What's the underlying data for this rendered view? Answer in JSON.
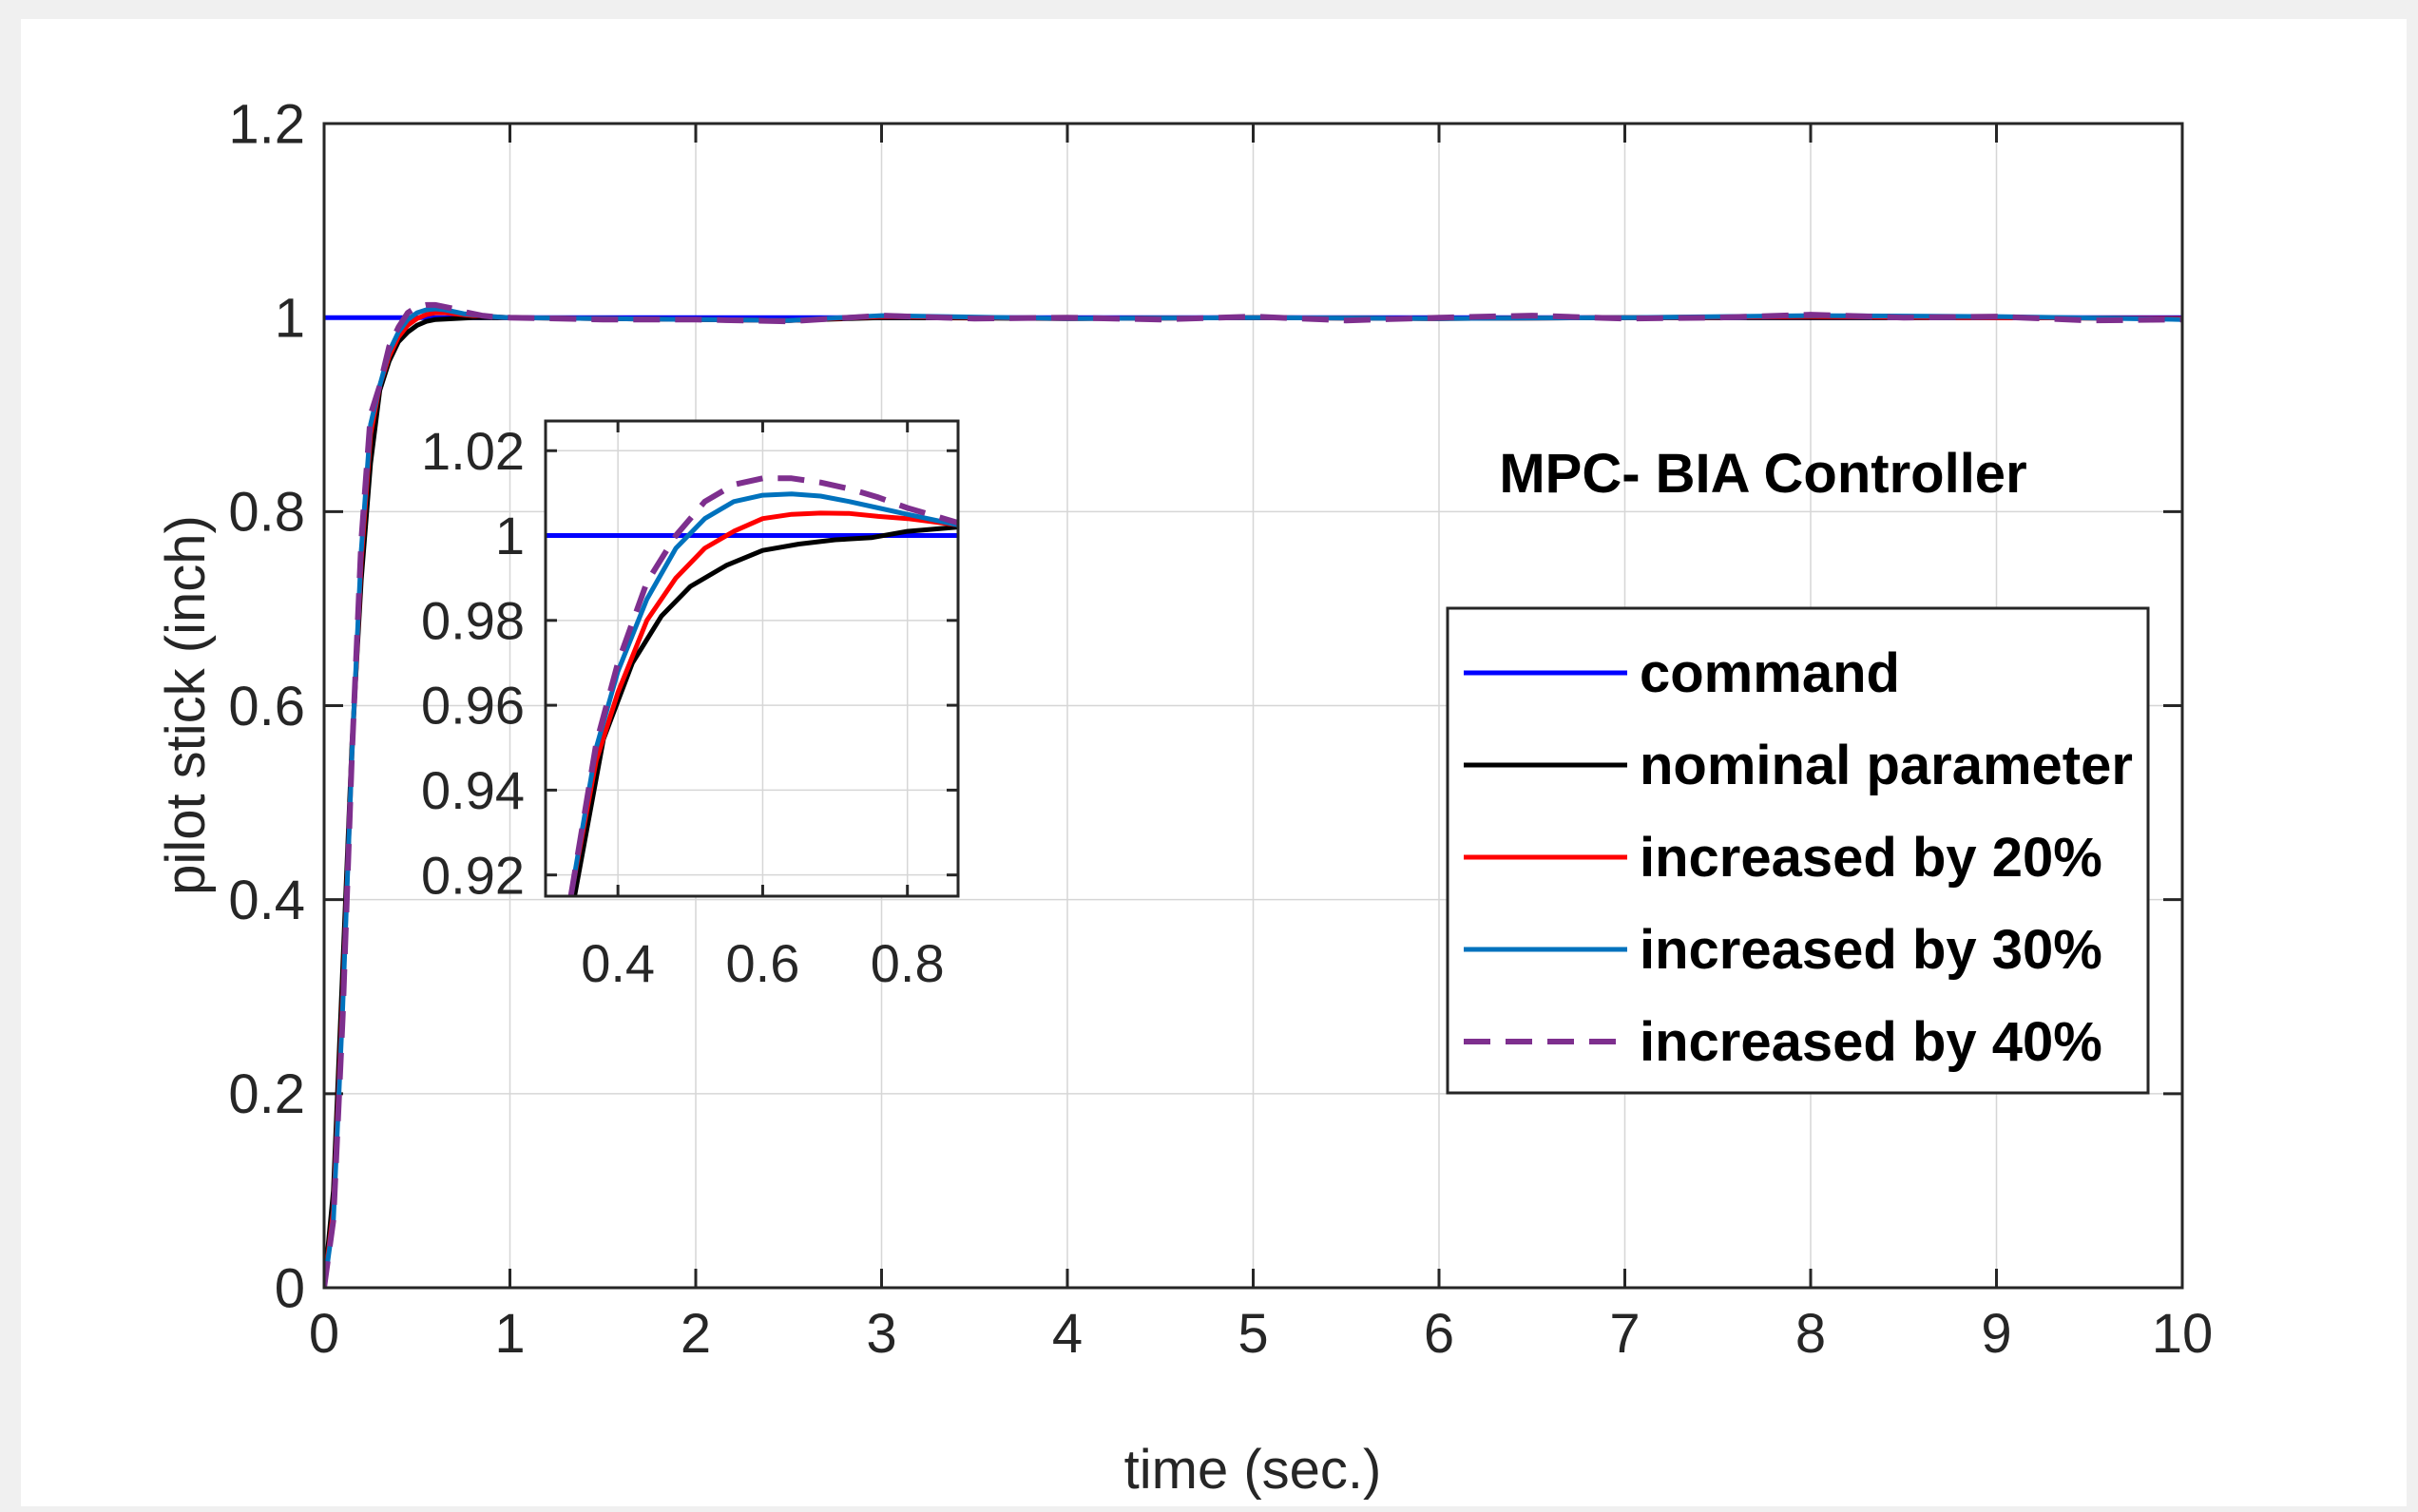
{
  "figure_title": "MPC- BIA Controller",
  "colors": {
    "command": "#0000ff",
    "nominal": "#000000",
    "inc20": "#ff0000",
    "inc30": "#0072bd",
    "inc40": "#7e2f8e",
    "figure_background": "#f0f0f0",
    "axes_background": "#ffffff"
  },
  "chart_data": [
    {
      "name": "main",
      "type": "line",
      "title": "MPC- BIA Controller",
      "xlabel": "time (sec.)",
      "ylabel": "pilot stick (inch)",
      "xlim": [
        0,
        10
      ],
      "ylim": [
        0,
        1.2
      ],
      "xticks": [
        0,
        1,
        2,
        3,
        4,
        5,
        6,
        7,
        8,
        9,
        10
      ],
      "yticks": [
        0,
        0.2,
        0.4,
        0.6,
        0.8,
        1,
        1.2
      ],
      "xtick_labels": [
        "0",
        "1",
        "2",
        "3",
        "4",
        "5",
        "6",
        "7",
        "8",
        "9",
        "10"
      ],
      "ytick_labels": [
        "0",
        "0.2",
        "0.4",
        "0.6",
        "0.8",
        "1",
        "1.2"
      ],
      "grid": true,
      "legend_position": "center-right",
      "series": [
        {
          "key": "command",
          "name": "command",
          "style": "solid",
          "x": [
            0,
            10
          ],
          "y": [
            1,
            1
          ]
        },
        {
          "key": "nominal",
          "name": "nominal parameter",
          "style": "solid",
          "x": [
            0,
            0.05,
            0.1,
            0.15,
            0.2,
            0.25,
            0.3,
            0.35,
            0.4,
            0.45,
            0.5,
            0.55,
            0.6,
            0.7,
            0.8,
            0.9,
            1.0,
            1.5,
            2.0,
            2.5,
            3.0,
            4.0,
            5.0,
            6.0,
            7.0,
            8.0,
            9.0,
            10.0
          ],
          "y": [
            0,
            0.1,
            0.33,
            0.56,
            0.73,
            0.85,
            0.925,
            0.955,
            0.975,
            0.985,
            0.992,
            0.996,
            0.998,
            0.999,
            1.0,
            1.0,
            1.0,
            0.999,
            0.998,
            0.997,
            1.0,
            0.999,
            1.0,
            0.999,
            1.0,
            1.0,
            1.0,
            0.999
          ]
        },
        {
          "key": "inc20",
          "name": "increased by 20%",
          "style": "solid",
          "x": [
            0,
            0.05,
            0.1,
            0.15,
            0.2,
            0.25,
            0.3,
            0.35,
            0.4,
            0.45,
            0.5,
            0.55,
            0.6,
            0.65,
            0.7,
            0.75,
            0.8,
            0.85,
            0.9,
            1.0,
            1.5,
            2.0,
            2.5,
            3.0,
            4.0,
            5.0,
            6.0,
            7.0,
            8.0,
            9.0,
            10.0
          ],
          "y": [
            0,
            0.08,
            0.3,
            0.55,
            0.75,
            0.88,
            0.93,
            0.96,
            0.98,
            0.992,
            0.999,
            1.003,
            1.005,
            1.005,
            1.004,
            1.003,
            1.002,
            1.002,
            1.001,
            1.0,
            0.999,
            0.998,
            0.997,
            1.001,
            0.999,
            1.0,
            0.999,
            1.0,
            1.001,
            1.0,
            0.999
          ]
        },
        {
          "key": "inc30",
          "name": "increased by 30%",
          "style": "solid",
          "x": [
            0,
            0.05,
            0.1,
            0.15,
            0.2,
            0.25,
            0.3,
            0.35,
            0.4,
            0.45,
            0.5,
            0.55,
            0.6,
            0.65,
            0.7,
            0.75,
            0.8,
            0.85,
            0.9,
            1.0,
            1.5,
            2.0,
            2.5,
            3.0,
            4.0,
            5.0,
            6.0,
            7.0,
            8.0,
            9.0,
            10.0
          ],
          "y": [
            0,
            0.07,
            0.29,
            0.55,
            0.76,
            0.89,
            0.93,
            0.965,
            0.985,
            0.998,
            1.005,
            1.008,
            1.009,
            1.008,
            1.006,
            1.004,
            1.003,
            1.002,
            1.001,
            1.0,
            0.999,
            0.998,
            0.997,
            1.002,
            0.999,
            1.0,
            0.999,
            1.0,
            1.002,
            1.001,
            0.998
          ]
        },
        {
          "key": "inc40",
          "name": "increased by 40%",
          "style": "dashed",
          "x": [
            0,
            0.05,
            0.1,
            0.15,
            0.2,
            0.25,
            0.3,
            0.35,
            0.4,
            0.45,
            0.5,
            0.55,
            0.6,
            0.65,
            0.7,
            0.75,
            0.8,
            0.85,
            0.9,
            1.0,
            1.5,
            2.0,
            2.5,
            3.0,
            3.5,
            4.0,
            4.5,
            5.0,
            5.5,
            6.0,
            6.5,
            7.0,
            7.5,
            8.0,
            8.5,
            9.0,
            9.5,
            10.0
          ],
          "y": [
            0,
            0.07,
            0.28,
            0.55,
            0.77,
            0.9,
            0.93,
            0.97,
            0.99,
            1.005,
            1.011,
            1.013,
            1.013,
            1.011,
            1.009,
            1.006,
            1.004,
            1.002,
            1.001,
            1.0,
            0.998,
            0.998,
            0.996,
            1.002,
            0.999,
            1.0,
            0.998,
            1.001,
            0.997,
            1.0,
            1.002,
            0.999,
            1.0,
            1.003,
            1.0,
            1.001,
            0.997,
            0.998
          ]
        }
      ]
    },
    {
      "name": "inset",
      "type": "line",
      "title": "",
      "xlabel": "",
      "ylabel": "",
      "xlim": [
        0.3,
        0.87
      ],
      "ylim": [
        0.915,
        1.027
      ],
      "xticks": [
        0.4,
        0.6,
        0.8
      ],
      "yticks": [
        0.92,
        0.94,
        0.96,
        0.98,
        1,
        1.02
      ],
      "xtick_labels": [
        "0.4",
        "0.6",
        "0.8"
      ],
      "ytick_labels": [
        "0.92",
        "0.94",
        "0.96",
        "0.98",
        "1",
        "1.02"
      ],
      "grid": true,
      "series": [
        {
          "key": "command",
          "name": "command",
          "style": "solid",
          "x": [
            0.3,
            0.87
          ],
          "y": [
            1,
            1
          ]
        },
        {
          "key": "nominal",
          "name": "nominal parameter",
          "style": "solid",
          "x": [
            0.34,
            0.38,
            0.42,
            0.46,
            0.5,
            0.55,
            0.6,
            0.65,
            0.7,
            0.75,
            0.8,
            0.87
          ],
          "y": [
            0.915,
            0.952,
            0.97,
            0.981,
            0.988,
            0.993,
            0.9965,
            0.998,
            0.999,
            0.9995,
            1.001,
            1.002
          ]
        },
        {
          "key": "inc20",
          "name": "increased by 20%",
          "style": "solid",
          "x": [
            0.335,
            0.37,
            0.4,
            0.44,
            0.48,
            0.52,
            0.56,
            0.6,
            0.64,
            0.68,
            0.72,
            0.76,
            0.8,
            0.87
          ],
          "y": [
            0.915,
            0.947,
            0.963,
            0.98,
            0.99,
            0.997,
            1.001,
            1.004,
            1.005,
            1.0053,
            1.0052,
            1.0045,
            1.004,
            1.0025
          ]
        },
        {
          "key": "inc30",
          "name": "increased by 30%",
          "style": "solid",
          "x": [
            0.335,
            0.37,
            0.4,
            0.44,
            0.48,
            0.52,
            0.56,
            0.6,
            0.64,
            0.68,
            0.72,
            0.76,
            0.8,
            0.87
          ],
          "y": [
            0.915,
            0.95,
            0.968,
            0.985,
            0.997,
            1.004,
            1.008,
            1.0095,
            1.0098,
            1.0093,
            1.008,
            1.0065,
            1.005,
            1.0025
          ]
        },
        {
          "key": "inc40",
          "name": "increased by 40%",
          "style": "dashed",
          "x": [
            0.335,
            0.37,
            0.4,
            0.44,
            0.48,
            0.52,
            0.56,
            0.6,
            0.64,
            0.68,
            0.72,
            0.76,
            0.8,
            0.87
          ],
          "y": [
            0.915,
            0.951,
            0.97,
            0.989,
            1.0,
            1.008,
            1.012,
            1.0135,
            1.0135,
            1.0125,
            1.011,
            1.009,
            1.0065,
            1.003
          ]
        }
      ]
    }
  ]
}
